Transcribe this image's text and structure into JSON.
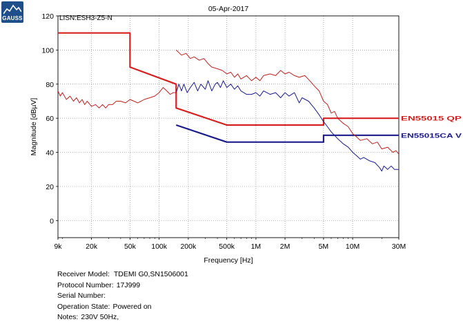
{
  "logo": {
    "text": "GAUSS",
    "color": "#1f4f8b"
  },
  "chart_data": {
    "type": "line",
    "title": "05-Apr-2017",
    "annotation": "LISN:ESH3-Z5-N",
    "xlabel": "Frequency [Hz]",
    "ylabel": "Magnitude [dBµV]",
    "xscale": "log",
    "xlim": [
      9000,
      30000000
    ],
    "ylim": [
      -10,
      120
    ],
    "grid": true,
    "x_ticks": [
      {
        "value": 9000,
        "label": "9k"
      },
      {
        "value": 20000,
        "label": "20k"
      },
      {
        "value": 50000,
        "label": "50k"
      },
      {
        "value": 100000,
        "label": "100k"
      },
      {
        "value": 200000,
        "label": "200k"
      },
      {
        "value": 500000,
        "label": "500k"
      },
      {
        "value": 1000000,
        "label": "1M"
      },
      {
        "value": 2000000,
        "label": "2M"
      },
      {
        "value": 5000000,
        "label": "5M"
      },
      {
        "value": 10000000,
        "label": "10M"
      },
      {
        "value": 30000000,
        "label": "30M"
      }
    ],
    "y_ticks": [
      0,
      20,
      40,
      60,
      80,
      100,
      120
    ],
    "series": [
      {
        "name": "EN55015 QP",
        "role": "limit",
        "color": "#d42020",
        "points": [
          [
            9000,
            110
          ],
          [
            50000,
            110
          ],
          [
            50000,
            90
          ],
          [
            150000,
            80
          ],
          [
            150000,
            66
          ],
          [
            500000,
            56
          ],
          [
            5000000,
            56
          ],
          [
            5000000,
            60
          ],
          [
            30000000,
            60
          ]
        ]
      },
      {
        "name": "EN55015CA V",
        "role": "limit",
        "color": "#1a1a8c",
        "points": [
          [
            150000,
            56
          ],
          [
            500000,
            46
          ],
          [
            5000000,
            46
          ],
          [
            5000000,
            50
          ],
          [
            30000000,
            50
          ]
        ]
      },
      {
        "role": "measurement",
        "color": "#c02020",
        "points": [
          [
            9000,
            76
          ],
          [
            9500,
            73
          ],
          [
            10000,
            75
          ],
          [
            11000,
            71
          ],
          [
            12000,
            73
          ],
          [
            13000,
            70
          ],
          [
            14000,
            72
          ],
          [
            15000,
            69
          ],
          [
            16000,
            71
          ],
          [
            17000,
            68
          ],
          [
            18000,
            70
          ],
          [
            20000,
            67
          ],
          [
            22000,
            68
          ],
          [
            24000,
            66
          ],
          [
            26000,
            68
          ],
          [
            28000,
            66
          ],
          [
            30000,
            68
          ],
          [
            33000,
            68
          ],
          [
            36000,
            70
          ],
          [
            40000,
            70
          ],
          [
            45000,
            69
          ],
          [
            50000,
            71
          ],
          [
            55000,
            70
          ],
          [
            60000,
            69
          ],
          [
            65000,
            70
          ],
          [
            70000,
            71
          ],
          [
            80000,
            72
          ],
          [
            90000,
            73
          ],
          [
            100000,
            75
          ],
          [
            110000,
            78
          ],
          [
            120000,
            76
          ],
          [
            130000,
            74
          ],
          [
            140000,
            75
          ],
          [
            150000,
            75
          ]
        ]
      },
      {
        "role": "measurement",
        "color": "#c02020",
        "points": [
          [
            150000,
            100
          ],
          [
            170000,
            97
          ],
          [
            190000,
            98
          ],
          [
            210000,
            95
          ],
          [
            230000,
            96
          ],
          [
            260000,
            94
          ],
          [
            290000,
            95
          ],
          [
            320000,
            92
          ],
          [
            350000,
            90
          ],
          [
            400000,
            89
          ],
          [
            450000,
            88
          ],
          [
            500000,
            86
          ],
          [
            550000,
            87
          ],
          [
            600000,
            84
          ],
          [
            650000,
            86
          ],
          [
            700000,
            83
          ],
          [
            800000,
            85
          ],
          [
            900000,
            82
          ],
          [
            1000000,
            84
          ],
          [
            1100000,
            82
          ],
          [
            1200000,
            85
          ],
          [
            1400000,
            86
          ],
          [
            1600000,
            85
          ],
          [
            1800000,
            88
          ],
          [
            2000000,
            86
          ],
          [
            2200000,
            87
          ],
          [
            2500000,
            85
          ],
          [
            2800000,
            84
          ],
          [
            3200000,
            85
          ],
          [
            3600000,
            82
          ],
          [
            4000000,
            79
          ],
          [
            4500000,
            76
          ],
          [
            5000000,
            70
          ],
          [
            5500000,
            68
          ],
          [
            6000000,
            63
          ],
          [
            6500000,
            64
          ],
          [
            7000000,
            60
          ],
          [
            8000000,
            57
          ],
          [
            9000000,
            55
          ],
          [
            10000000,
            51
          ],
          [
            11000000,
            49
          ],
          [
            12000000,
            47
          ],
          [
            14000000,
            48
          ],
          [
            16000000,
            45
          ],
          [
            18000000,
            46
          ],
          [
            20000000,
            42
          ],
          [
            23000000,
            43
          ],
          [
            26000000,
            40
          ],
          [
            28000000,
            41
          ],
          [
            30000000,
            39
          ]
        ]
      },
      {
        "role": "measurement",
        "color": "#1a1a8c",
        "points": [
          [
            150000,
            75
          ],
          [
            160000,
            80
          ],
          [
            170000,
            76
          ],
          [
            180000,
            80
          ],
          [
            195000,
            75
          ],
          [
            210000,
            78
          ],
          [
            230000,
            81
          ],
          [
            250000,
            76
          ],
          [
            270000,
            80
          ],
          [
            300000,
            77
          ],
          [
            320000,
            82
          ],
          [
            350000,
            76
          ],
          [
            380000,
            80
          ],
          [
            400000,
            81
          ],
          [
            430000,
            78
          ],
          [
            460000,
            82
          ],
          [
            500000,
            78
          ],
          [
            550000,
            80
          ],
          [
            600000,
            77
          ],
          [
            650000,
            79
          ],
          [
            700000,
            76
          ],
          [
            800000,
            74
          ],
          [
            900000,
            74
          ],
          [
            1000000,
            75
          ],
          [
            1100000,
            73
          ],
          [
            1200000,
            76
          ],
          [
            1400000,
            74
          ],
          [
            1600000,
            75
          ],
          [
            1800000,
            72
          ],
          [
            2000000,
            75
          ],
          [
            2200000,
            73
          ],
          [
            2500000,
            75
          ],
          [
            2800000,
            69
          ],
          [
            3000000,
            72
          ],
          [
            3500000,
            70
          ],
          [
            4000000,
            66
          ],
          [
            4500000,
            62
          ],
          [
            5000000,
            58
          ],
          [
            5500000,
            55
          ],
          [
            6000000,
            52
          ],
          [
            7000000,
            48
          ],
          [
            8000000,
            45
          ],
          [
            9000000,
            43
          ],
          [
            10000000,
            40
          ],
          [
            11000000,
            38
          ],
          [
            12000000,
            36
          ],
          [
            13000000,
            37
          ],
          [
            15000000,
            35
          ],
          [
            17000000,
            34
          ],
          [
            19000000,
            31
          ],
          [
            20000000,
            29
          ],
          [
            21000000,
            32
          ],
          [
            23000000,
            30
          ],
          [
            25000000,
            32
          ],
          [
            27000000,
            30
          ],
          [
            30000000,
            30
          ]
        ]
      }
    ]
  },
  "info": {
    "receiver_label": "Receiver Model:",
    "receiver_value": "TDEMI G0,SN1506001",
    "protocol_label": "Protocol Number:",
    "protocol_value": "17J999",
    "serial_label": "Serial Number:",
    "serial_value": "",
    "state_label": "Operation State:",
    "state_value": "Powered on",
    "notes_label": "Notes:",
    "notes_value": "230V 50Hz,"
  }
}
